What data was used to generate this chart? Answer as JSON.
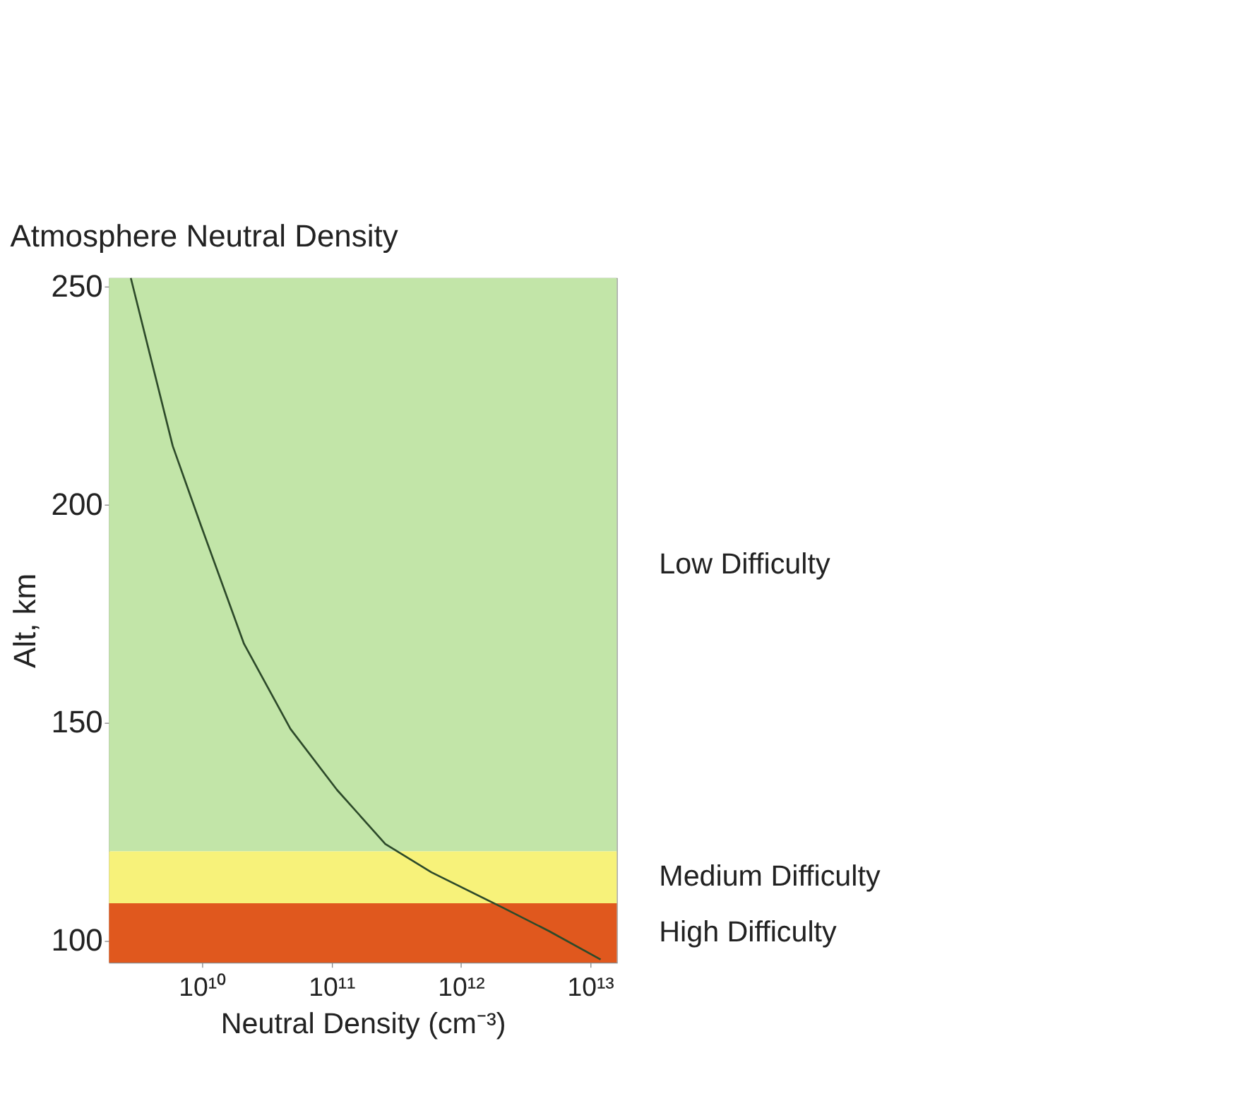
{
  "chart_data": {
    "type": "line",
    "title": "Atmosphere Neutral Density",
    "xlabel": "Neutral Density (cm⁻³)",
    "ylabel": "Alt, km",
    "log": "x",
    "x": [
      2800000000.0,
      5900000000.0,
      9800000000.0,
      21000000000.0,
      48000000000.0,
      110000000000.0,
      260000000000.0,
      590000000000.0,
      2100000000000.0,
      4800000000000.0,
      12000000000000.0
    ],
    "series": [
      {
        "color": "#2d4a2a",
        "values": [
          252,
          213.5,
          195.1,
          168.1,
          148.6,
          134.6,
          122.2,
          115.7,
          107.6,
          102.2,
          95.7
        ]
      }
    ],
    "xlim": [
      1900000000.0,
      16000000000000.0
    ],
    "xticks": [
      {
        "value": 10000000000.0,
        "label": "10¹⁰"
      },
      {
        "value": 100000000000.0,
        "label": "10¹¹"
      },
      {
        "value": 1000000000000.0,
        "label": "10¹²"
      },
      {
        "value": 10000000000000.0,
        "label": "10¹³"
      }
    ],
    "ylim": [
      95,
      252
    ],
    "yticks": [
      100,
      150,
      200,
      250
    ],
    "grid": false,
    "line_style": "solid",
    "marker": "none",
    "bands": [
      {
        "axis": "y",
        "from": 120.5,
        "to": 252,
        "label": "Low Difficulty",
        "color": "#c2e5a8"
      },
      {
        "axis": "y",
        "from": 108.6,
        "to": 120.5,
        "label": "Medium Difficulty",
        "color": "#f7f27a"
      },
      {
        "axis": "y",
        "from": 95,
        "to": 108.6,
        "label": "High Difficulty",
        "color": "#e0581e"
      }
    ]
  }
}
